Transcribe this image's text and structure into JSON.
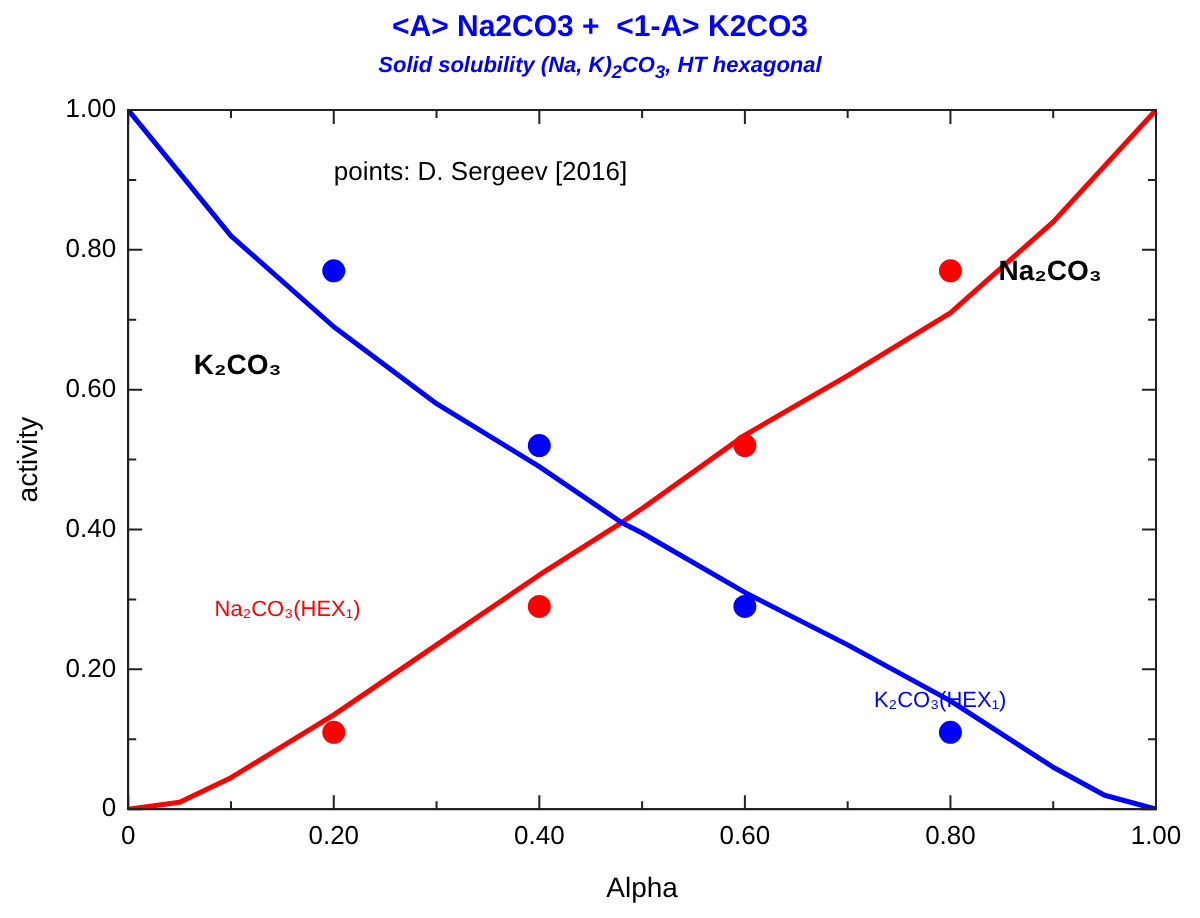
{
  "chart_data": {
    "type": "line",
    "title": "<A> Na2CO3 +  <1-A> K2CO3",
    "subtitle": "Solid solubility (Na, K)$_{2}$CO$_{3}$, HT hexagonal",
    "xlabel": "Alpha",
    "ylabel": "activity",
    "xlim": [
      0,
      1
    ],
    "ylim": [
      0,
      1
    ],
    "xticks": [
      {
        "value": 0,
        "label": "0"
      },
      {
        "value": 0.1,
        "label": null
      },
      {
        "value": 0.2,
        "label": "0.20"
      },
      {
        "value": 0.3,
        "label": null
      },
      {
        "value": 0.4,
        "label": "0.40"
      },
      {
        "value": 0.5,
        "label": null
      },
      {
        "value": 0.6,
        "label": "0.60"
      },
      {
        "value": 0.7,
        "label": null
      },
      {
        "value": 0.8,
        "label": "0.80"
      },
      {
        "value": 0.9,
        "label": null
      },
      {
        "value": 1,
        "label": "1.00"
      }
    ],
    "yticks": [
      {
        "value": 0,
        "label": "0"
      },
      {
        "value": 0.1,
        "label": null
      },
      {
        "value": 0.2,
        "label": "0.20"
      },
      {
        "value": 0.3,
        "label": null
      },
      {
        "value": 0.4,
        "label": "0.40"
      },
      {
        "value": 0.5,
        "label": null
      },
      {
        "value": 0.6,
        "label": "0.60"
      },
      {
        "value": 0.7,
        "label": null
      },
      {
        "value": 0.8,
        "label": "0.80"
      },
      {
        "value": 0.9,
        "label": null
      },
      {
        "value": 1,
        "label": "1.00"
      }
    ],
    "grid": false,
    "legend": false,
    "line_style": "solid",
    "series": [
      {
        "name": "K₂CO₃",
        "color": "#0000ff",
        "marker": "none",
        "x": [
          0,
          0.05,
          0.1,
          0.2,
          0.3,
          0.4,
          0.48,
          0.5,
          0.6,
          0.7,
          0.8,
          0.9,
          0.95,
          1
        ],
        "values": [
          1,
          0.91,
          0.82,
          0.69,
          0.58,
          0.49,
          0.41,
          0.395,
          0.31,
          0.235,
          0.155,
          0.06,
          0.02,
          0
        ]
      },
      {
        "name": "Na₂CO₃",
        "color": "#ff0000",
        "marker": "none",
        "x": [
          0,
          0.05,
          0.1,
          0.2,
          0.3,
          0.4,
          0.48,
          0.5,
          0.6,
          0.7,
          0.8,
          0.9,
          1
        ],
        "values": [
          0,
          0.01,
          0.045,
          0.135,
          0.235,
          0.335,
          0.41,
          0.43,
          0.535,
          0.62,
          0.71,
          0.84,
          1
        ]
      },
      {
        "type": "scatter",
        "color": "#0000ff",
        "marker": "circle",
        "x": [
          0.2,
          0.4,
          0.6,
          0.8
        ],
        "values": [
          0.77,
          0.52,
          0.29,
          0.11
        ]
      },
      {
        "type": "scatter",
        "color": "#ff0000",
        "marker": "circle",
        "x": [
          0.2,
          0.4,
          0.6,
          0.8
        ],
        "values": [
          0.11,
          0.29,
          0.52,
          0.77
        ]
      }
    ],
    "annotations": [
      "points: D. Sergeev [2016]",
      "Na₂CO₃(HEX₁)",
      "K₂CO₃(HEX₁)"
    ]
  }
}
